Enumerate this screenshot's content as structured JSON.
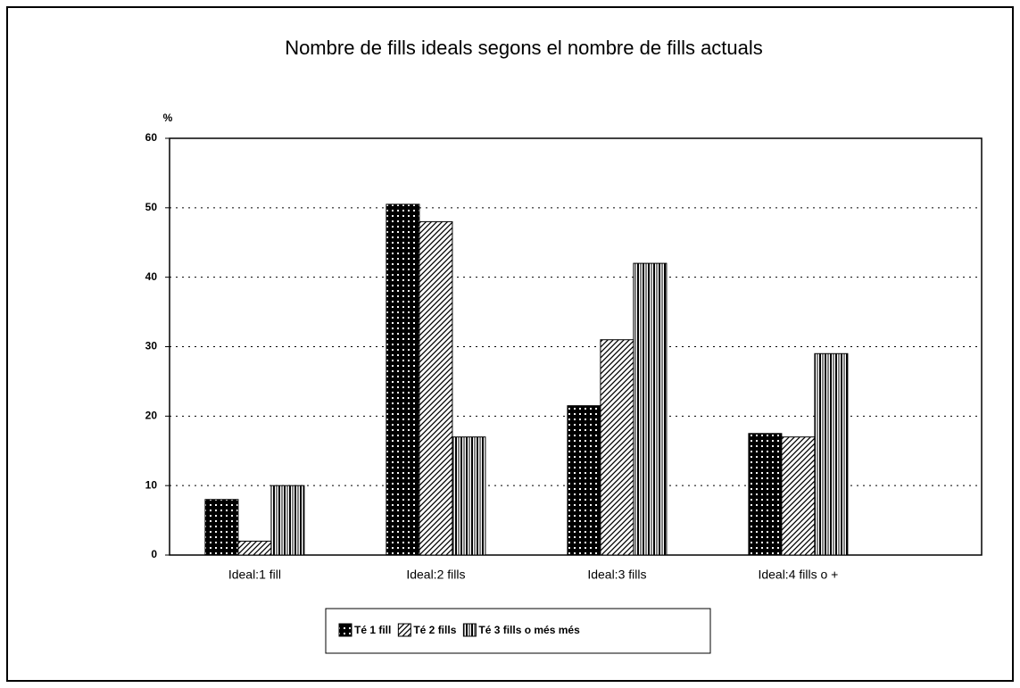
{
  "chart_data": {
    "type": "bar",
    "title": "Nombre de fills ideals segons el nombre de fills actuals",
    "ylabel": "%",
    "categories": [
      "Ideal:1 fill",
      "Ideal:2 fills",
      "Ideal:3 fills",
      "Ideal:4 fills o +"
    ],
    "series": [
      {
        "name": "Té 1 fill",
        "color": "#000000",
        "pattern": "grid",
        "values": [
          8,
          50.5,
          21.5,
          17.5
        ]
      },
      {
        "name": "Té 2 fills",
        "color": "#000000",
        "pattern": "diagonal",
        "values": [
          2,
          48,
          31,
          17
        ]
      },
      {
        "name": "Té 3 fills o més més",
        "color": "#000000",
        "pattern": "vertical",
        "values": [
          10,
          17,
          42,
          29
        ]
      }
    ],
    "ylim": [
      0,
      60
    ],
    "yticks": [
      0,
      10,
      20,
      30,
      40,
      50,
      60
    ],
    "grid": true
  }
}
